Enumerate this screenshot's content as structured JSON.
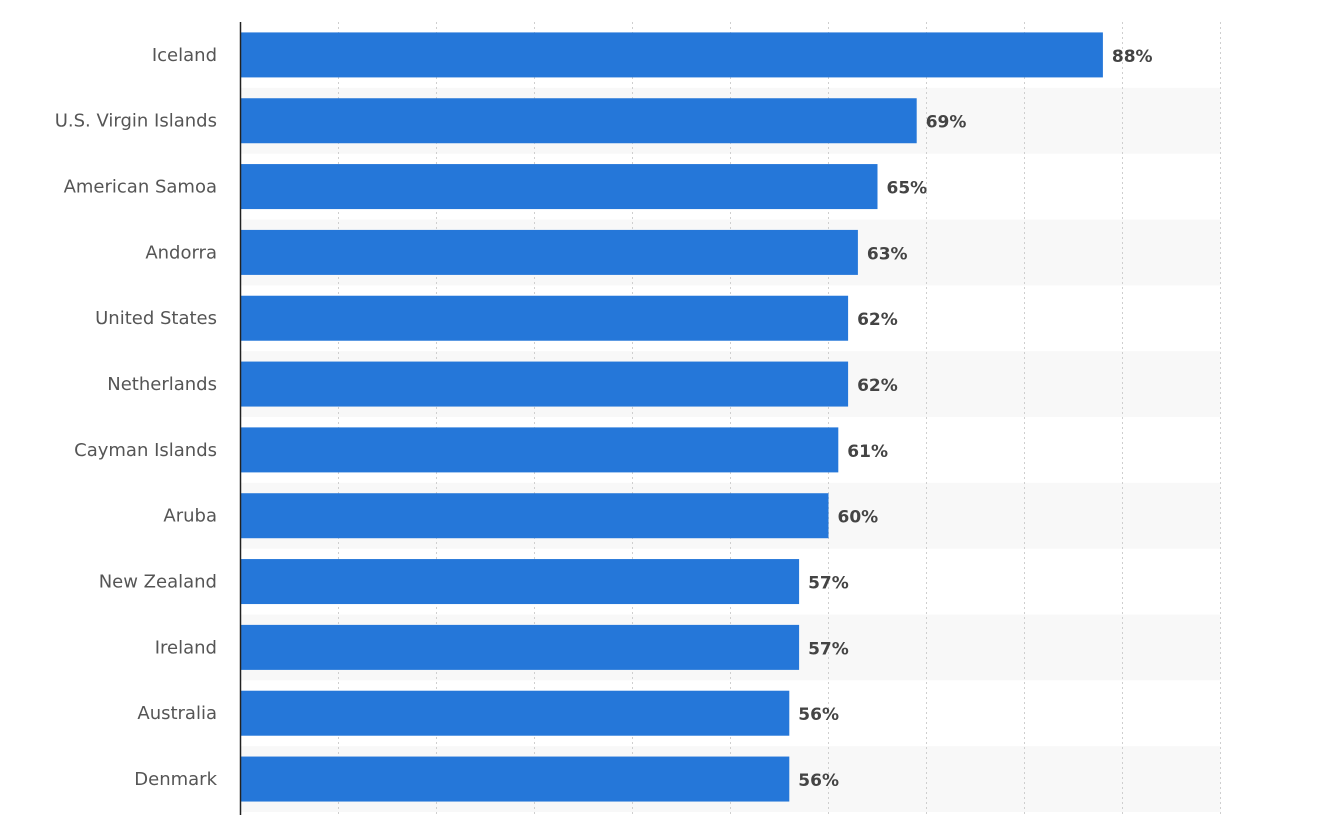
{
  "chart_data": {
    "type": "bar",
    "orientation": "horizontal",
    "categories": [
      "Iceland",
      "U.S. Virgin Islands",
      "American Samoa",
      "Andorra",
      "United States",
      "Netherlands",
      "Cayman Islands",
      "Aruba",
      "New Zealand",
      "Ireland",
      "Australia",
      "Denmark"
    ],
    "values": [
      88,
      69,
      65,
      63,
      62,
      62,
      61,
      60,
      57,
      57,
      56,
      56
    ],
    "value_labels": [
      "88%",
      "69%",
      "65%",
      "63%",
      "62%",
      "62%",
      "61%",
      "60%",
      "57%",
      "57%",
      "56%",
      "56%"
    ],
    "xlim": [
      0,
      100
    ],
    "grid": true,
    "legend": "none",
    "bar_color": "#2577d9"
  }
}
